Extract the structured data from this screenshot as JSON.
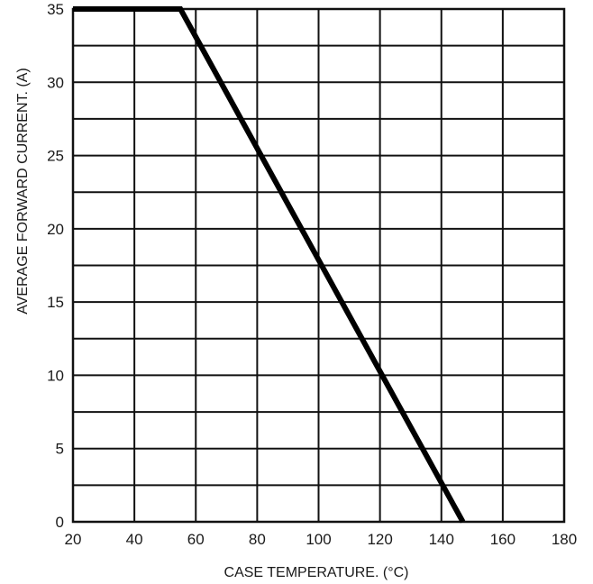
{
  "chart_data": {
    "type": "line",
    "title": "",
    "xlabel": "CASE TEMPERATURE. (°C)",
    "ylabel": "AVERAGE FORWARD CURRENT. (A)",
    "xlim": [
      20,
      180
    ],
    "ylim": [
      0,
      35
    ],
    "x_ticks": [
      20,
      40,
      60,
      80,
      100,
      120,
      140,
      160,
      180
    ],
    "y_ticks": [
      0,
      5,
      10,
      15,
      20,
      25,
      30,
      35
    ],
    "x_minor_step": 20,
    "y_minor_step": 2.5,
    "grid": true,
    "series": [
      {
        "x": [
          20,
          55,
          147
        ],
        "y": [
          35,
          35,
          0
        ]
      }
    ],
    "line_color": "#000000"
  }
}
